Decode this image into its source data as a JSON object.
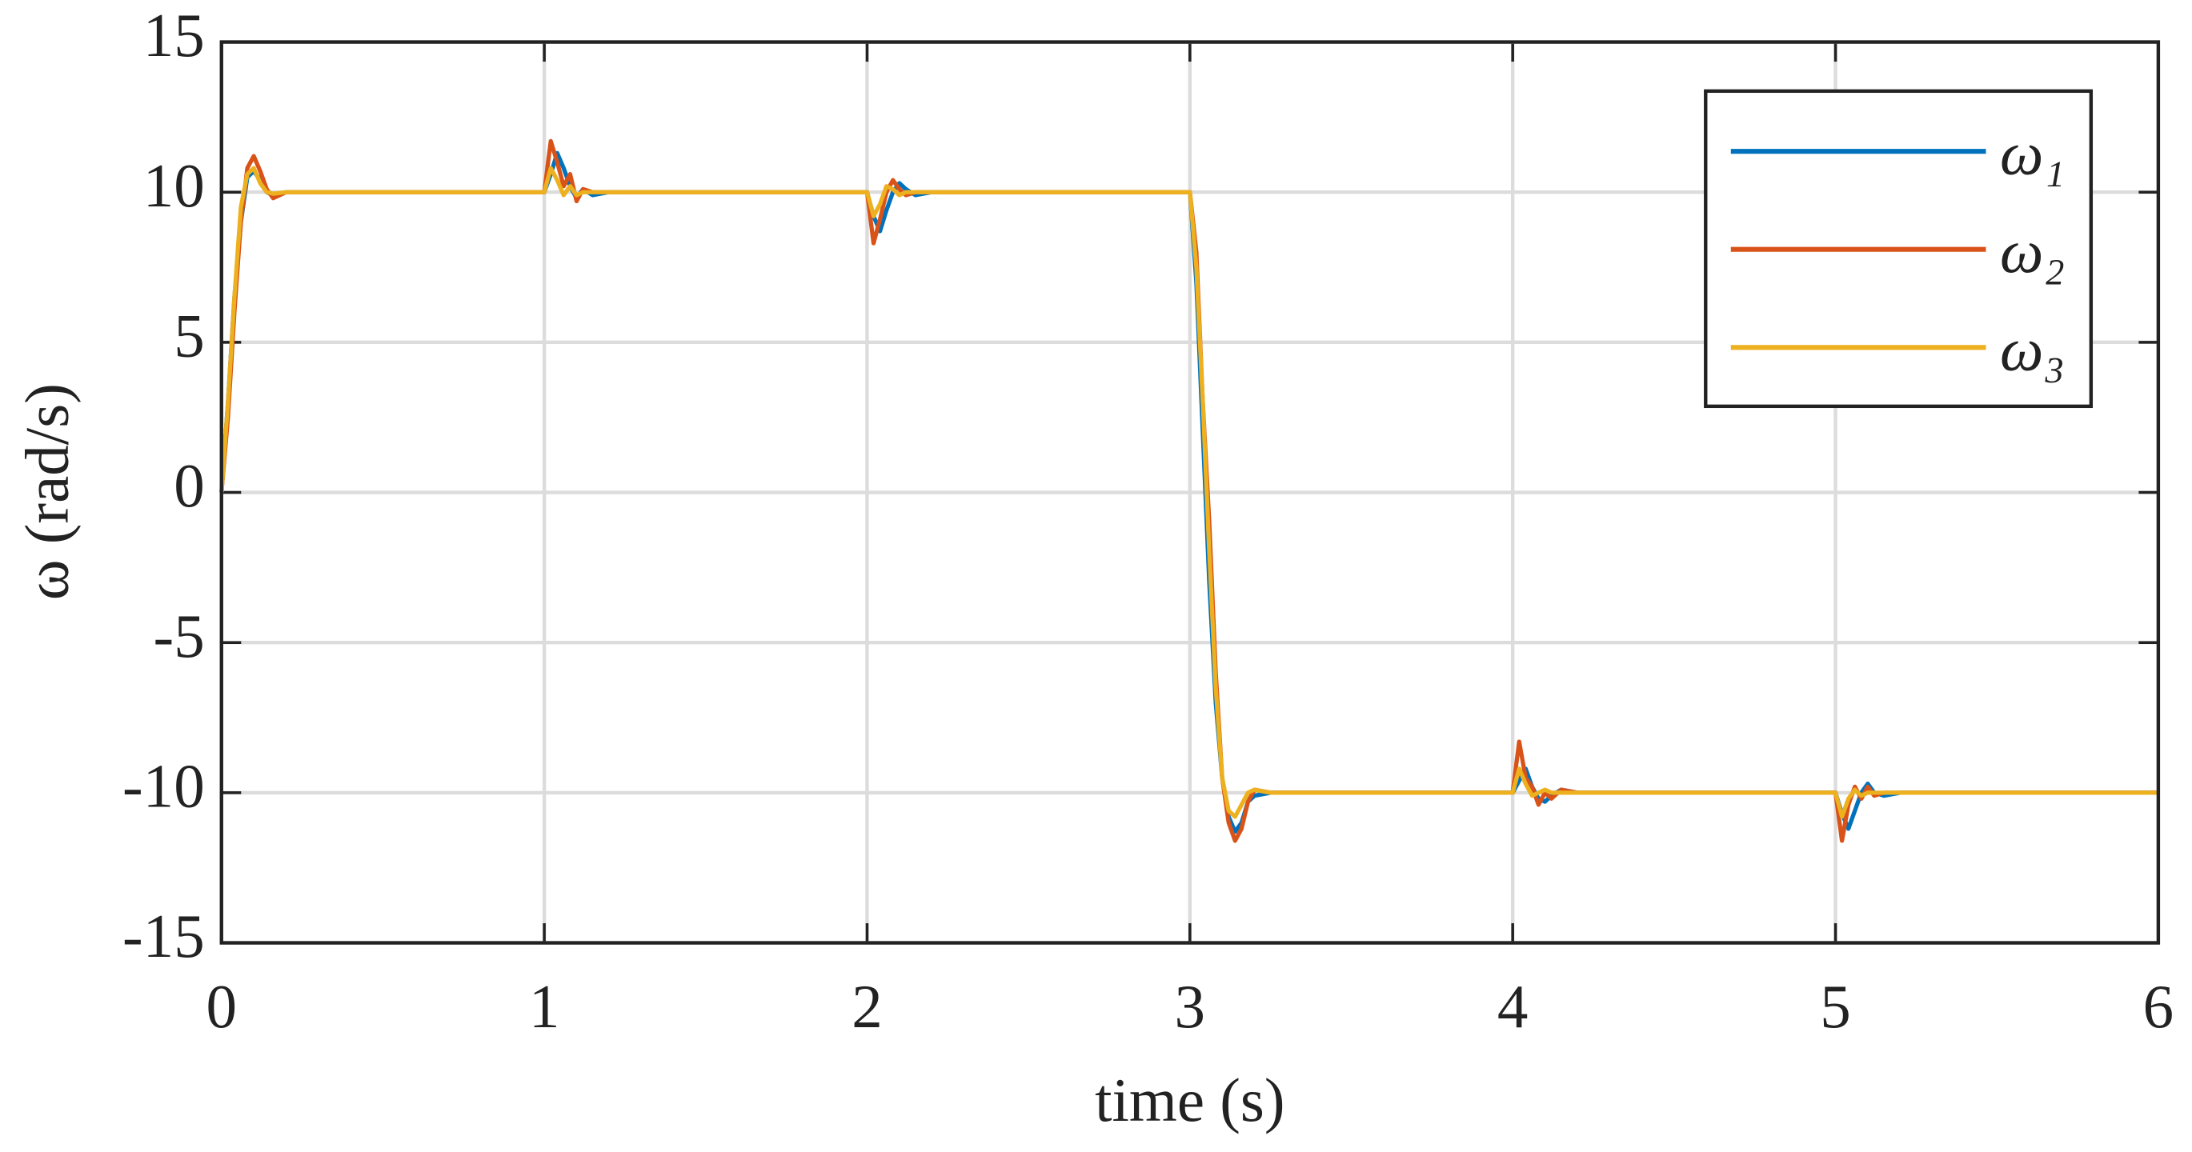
{
  "chart_data": {
    "type": "line",
    "xlabel": "time (s)",
    "ylabel": "ω (rad/s)",
    "x": [
      0,
      0.02,
      0.04,
      0.06,
      0.08,
      0.1,
      0.12,
      0.14,
      0.16,
      0.2,
      0.25,
      0.3,
      0.4,
      1.0,
      1.02,
      1.04,
      1.06,
      1.08,
      1.1,
      1.12,
      1.15,
      1.2,
      1.3,
      2.0,
      2.02,
      2.04,
      2.06,
      2.08,
      2.1,
      2.12,
      2.15,
      2.2,
      2.3,
      3.0,
      3.02,
      3.04,
      3.06,
      3.08,
      3.1,
      3.12,
      3.14,
      3.16,
      3.18,
      3.2,
      3.25,
      3.3,
      3.4,
      4.0,
      4.02,
      4.04,
      4.06,
      4.08,
      4.1,
      4.12,
      4.15,
      4.2,
      4.3,
      5.0,
      5.02,
      5.04,
      5.06,
      5.08,
      5.1,
      5.12,
      5.15,
      5.2,
      5.3,
      6.0
    ],
    "series": [
      {
        "name": "ω₁",
        "color": "#0072bd",
        "values": [
          0,
          3,
          6.5,
          9,
          10.5,
          10.7,
          10.4,
          10,
          9.9,
          10,
          10,
          10,
          10,
          10,
          10.6,
          11.3,
          10.8,
          10.2,
          9.8,
          10.1,
          9.9,
          10,
          10,
          10,
          9.2,
          8.7,
          9.4,
          10,
          10.3,
          10.1,
          9.9,
          10,
          10,
          10,
          7,
          2,
          -3,
          -7,
          -9.5,
          -10.8,
          -11.3,
          -11,
          -10.3,
          -10.1,
          -10,
          -10,
          -10,
          -10,
          -9.6,
          -9.2,
          -9.8,
          -10.2,
          -10.3,
          -10.1,
          -9.9,
          -10,
          -10,
          -10,
          -10.7,
          -11.2,
          -10.6,
          -10,
          -9.7,
          -10,
          -10.1,
          -10,
          -10,
          -10
        ]
      },
      {
        "name": "ω₂",
        "color": "#d95319",
        "values": [
          0,
          2.5,
          6,
          9,
          10.8,
          11.2,
          10.7,
          10.1,
          9.8,
          10,
          10,
          10,
          10,
          10,
          11.7,
          11,
          10.2,
          10.6,
          9.7,
          10.1,
          10,
          10,
          10,
          10,
          8.3,
          9.1,
          10,
          10.4,
          10.1,
          9.9,
          10,
          10,
          10,
          10,
          8,
          3,
          -1,
          -6,
          -9.5,
          -11,
          -11.6,
          -11.2,
          -10.3,
          -9.9,
          -10,
          -10,
          -10,
          -10,
          -8.3,
          -9.5,
          -9.8,
          -10.4,
          -10,
          -10.2,
          -9.9,
          -10,
          -10,
          -10,
          -11.6,
          -10.4,
          -9.8,
          -10.2,
          -9.8,
          -10.1,
          -10,
          -10,
          -10,
          -10
        ]
      },
      {
        "name": "ω₃",
        "color": "#edb120",
        "values": [
          0,
          3,
          6.5,
          9.5,
          10.6,
          10.8,
          10.3,
          10,
          9.95,
          10,
          10,
          10,
          10,
          10,
          10.8,
          10.4,
          9.9,
          10.2,
          9.9,
          10,
          10,
          10,
          10,
          10,
          9.2,
          9.6,
          10.2,
          10.1,
          9.9,
          10,
          10,
          10,
          10,
          10,
          7.5,
          3,
          -2,
          -6.5,
          -9.5,
          -10.6,
          -10.8,
          -10.4,
          -10,
          -9.9,
          -10,
          -10,
          -10,
          -10,
          -9.2,
          -9.7,
          -10.1,
          -10,
          -9.9,
          -10,
          -10,
          -10,
          -10,
          -10,
          -10.8,
          -10.2,
          -9.9,
          -10.1,
          -10,
          -10,
          -10,
          -10,
          -10,
          -10
        ]
      }
    ],
    "xlim": [
      0,
      6
    ],
    "xticks": [
      0,
      1,
      2,
      3,
      4,
      5,
      6
    ],
    "ylim": [
      -15,
      15
    ],
    "yticks": [
      -15,
      -10,
      -5,
      0,
      5,
      10,
      15
    ],
    "grid": true,
    "legend": "upper right"
  }
}
